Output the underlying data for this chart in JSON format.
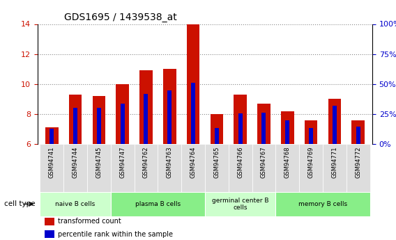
{
  "title": "GDS1695 / 1439538_at",
  "samples": [
    "GSM94741",
    "GSM94744",
    "GSM94745",
    "GSM94747",
    "GSM94762",
    "GSM94763",
    "GSM94764",
    "GSM94765",
    "GSM94766",
    "GSM94767",
    "GSM94768",
    "GSM94769",
    "GSM94771",
    "GSM94772"
  ],
  "transformed_count": [
    7.1,
    9.3,
    9.2,
    10.0,
    10.9,
    11.0,
    14.0,
    8.0,
    9.3,
    8.7,
    8.2,
    7.6,
    9.0,
    7.6
  ],
  "percentile_rank_left": [
    7.0,
    8.4,
    8.4,
    8.7,
    9.35,
    9.55,
    10.1,
    7.05,
    8.05,
    8.1,
    7.6,
    7.05,
    8.55,
    7.15
  ],
  "ylim_left": [
    6,
    14
  ],
  "ylim_right": [
    0,
    100
  ],
  "yticks_left": [
    6,
    8,
    10,
    12,
    14
  ],
  "yticks_right": [
    0,
    25,
    50,
    75,
    100
  ],
  "ytick_labels_right": [
    "0%",
    "25%",
    "50%",
    "75%",
    "100%"
  ],
  "bar_color": "#cc1100",
  "percentile_color": "#0000cc",
  "bar_width": 0.55,
  "perc_bar_width": 0.18,
  "groups": [
    {
      "label": "naive B cells",
      "start": 0,
      "end": 2,
      "color": "#ccffcc"
    },
    {
      "label": "plasma B cells",
      "start": 3,
      "end": 6,
      "color": "#88ee88"
    },
    {
      "label": "germinal center B\ncells",
      "start": 7,
      "end": 9,
      "color": "#ccffcc"
    },
    {
      "label": "memory B cells",
      "start": 10,
      "end": 13,
      "color": "#88ee88"
    }
  ],
  "legend_items": [
    {
      "label": "transformed count",
      "color": "#cc1100"
    },
    {
      "label": "percentile rank within the sample",
      "color": "#0000cc"
    }
  ],
  "cell_type_label": "cell type",
  "grid_color": "#888888",
  "background_color": "#ffffff",
  "tick_label_color_left": "#cc1100",
  "tick_label_color_right": "#0000cc",
  "xtick_bg_color": "#dddddd"
}
